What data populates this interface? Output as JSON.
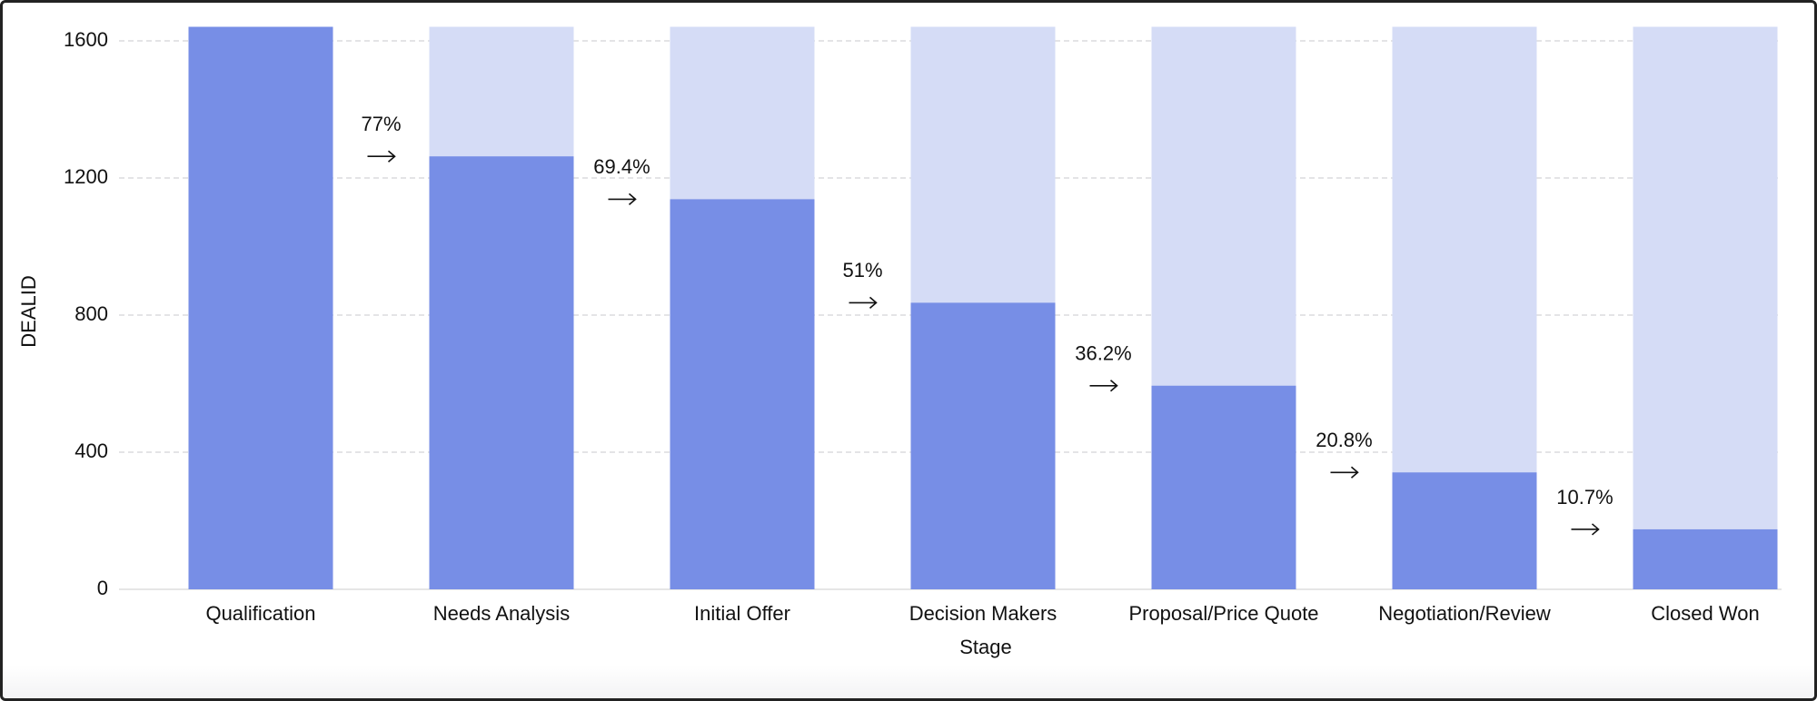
{
  "chart_data": {
    "type": "funnel-bar",
    "x_label": "Stage",
    "y_label": "DEALID",
    "categories": [
      "Qualification",
      "Needs Analysis",
      "Initial Offer",
      "Decision Makers",
      "Proposal/Price Quote",
      "Negotiation/Review",
      "Closed Won"
    ],
    "values": [
      1641,
      1263,
      1138,
      836,
      594,
      341,
      175
    ],
    "color": "#778ee6",
    "background_color": "#d5dcf6",
    "conversion_rates": [
      77,
      69.4,
      51,
      36.2,
      20.8,
      10.7
    ],
    "conversion_labels": [
      "77%",
      "69.4%",
      "51%",
      "36.2%",
      "20.8%",
      "10.7%"
    ],
    "ylim": [
      0,
      1600
    ],
    "yticks": [
      0,
      400,
      800,
      1200,
      1600
    ],
    "grid": true
  }
}
